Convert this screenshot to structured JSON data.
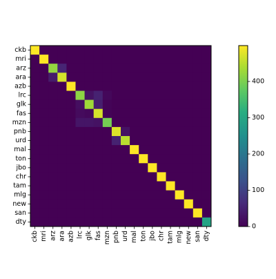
{
  "chart_data": {
    "type": "heatmap",
    "title": "",
    "xlabel": "",
    "ylabel": "",
    "labels": [
      "ckb",
      "mri",
      "arz",
      "ara",
      "azb",
      "lrc",
      "glk",
      "fas",
      "mzn",
      "pnb",
      "urd",
      "mal",
      "ton",
      "jbo",
      "chr",
      "tam",
      "mlg",
      "new",
      "san",
      "dty"
    ],
    "matrix": [
      [
        499,
        0,
        0,
        0,
        0,
        0,
        0,
        0,
        0,
        0,
        0,
        0,
        0,
        0,
        0,
        0,
        0,
        0,
        0,
        0
      ],
      [
        0,
        499,
        0,
        0,
        0,
        0,
        0,
        0,
        0,
        0,
        0,
        0,
        0,
        0,
        0,
        0,
        0,
        0,
        0,
        0
      ],
      [
        0,
        0,
        420,
        55,
        0,
        0,
        0,
        0,
        0,
        0,
        0,
        0,
        0,
        0,
        0,
        0,
        0,
        0,
        0,
        0
      ],
      [
        0,
        0,
        40,
        470,
        0,
        0,
        0,
        0,
        0,
        0,
        0,
        0,
        0,
        0,
        0,
        0,
        0,
        0,
        0,
        0
      ],
      [
        0,
        0,
        0,
        0,
        499,
        0,
        0,
        0,
        0,
        0,
        0,
        0,
        0,
        0,
        0,
        0,
        0,
        0,
        0,
        0
      ],
      [
        0,
        0,
        0,
        0,
        0,
        415,
        25,
        50,
        10,
        0,
        0,
        0,
        0,
        0,
        0,
        0,
        0,
        0,
        0,
        0
      ],
      [
        0,
        0,
        0,
        0,
        0,
        20,
        430,
        45,
        5,
        0,
        0,
        0,
        0,
        0,
        0,
        0,
        0,
        0,
        0,
        0
      ],
      [
        0,
        0,
        0,
        0,
        0,
        15,
        10,
        470,
        5,
        0,
        0,
        0,
        0,
        0,
        0,
        0,
        0,
        0,
        0,
        0
      ],
      [
        0,
        0,
        0,
        0,
        0,
        30,
        30,
        25,
        395,
        0,
        0,
        0,
        0,
        0,
        0,
        0,
        0,
        0,
        0,
        0
      ],
      [
        0,
        0,
        0,
        0,
        0,
        0,
        0,
        0,
        0,
        475,
        25,
        0,
        0,
        0,
        0,
        0,
        0,
        0,
        0,
        0
      ],
      [
        0,
        0,
        0,
        0,
        0,
        0,
        0,
        0,
        0,
        50,
        450,
        0,
        0,
        0,
        0,
        0,
        0,
        0,
        0,
        0
      ],
      [
        0,
        0,
        0,
        0,
        0,
        0,
        0,
        0,
        0,
        0,
        0,
        499,
        0,
        0,
        0,
        0,
        0,
        0,
        0,
        0
      ],
      [
        0,
        0,
        0,
        0,
        0,
        0,
        0,
        0,
        0,
        0,
        0,
        0,
        499,
        0,
        0,
        0,
        0,
        0,
        0,
        0
      ],
      [
        0,
        0,
        0,
        0,
        0,
        0,
        0,
        0,
        0,
        0,
        0,
        0,
        0,
        499,
        0,
        0,
        0,
        0,
        0,
        0
      ],
      [
        0,
        0,
        0,
        0,
        0,
        0,
        0,
        0,
        0,
        0,
        0,
        0,
        0,
        0,
        499,
        0,
        0,
        0,
        0,
        0
      ],
      [
        0,
        0,
        0,
        0,
        0,
        0,
        0,
        0,
        0,
        0,
        0,
        0,
        0,
        0,
        0,
        499,
        0,
        0,
        0,
        0
      ],
      [
        0,
        0,
        0,
        0,
        0,
        0,
        0,
        0,
        0,
        0,
        0,
        0,
        0,
        0,
        0,
        0,
        499,
        0,
        0,
        0
      ],
      [
        0,
        0,
        0,
        0,
        0,
        0,
        0,
        0,
        0,
        0,
        0,
        0,
        0,
        0,
        0,
        0,
        0,
        499,
        0,
        0
      ],
      [
        0,
        0,
        0,
        0,
        0,
        0,
        0,
        0,
        0,
        0,
        0,
        0,
        0,
        0,
        0,
        0,
        0,
        0,
        499,
        0
      ],
      [
        0,
        0,
        0,
        0,
        0,
        0,
        0,
        0,
        0,
        0,
        0,
        0,
        0,
        0,
        0,
        0,
        0,
        0,
        0,
        295
      ]
    ],
    "colorbar": {
      "range": [
        0,
        499
      ],
      "ticks": [
        0,
        100,
        200,
        300,
        400
      ],
      "colormap": "viridis"
    },
    "grid": false
  }
}
